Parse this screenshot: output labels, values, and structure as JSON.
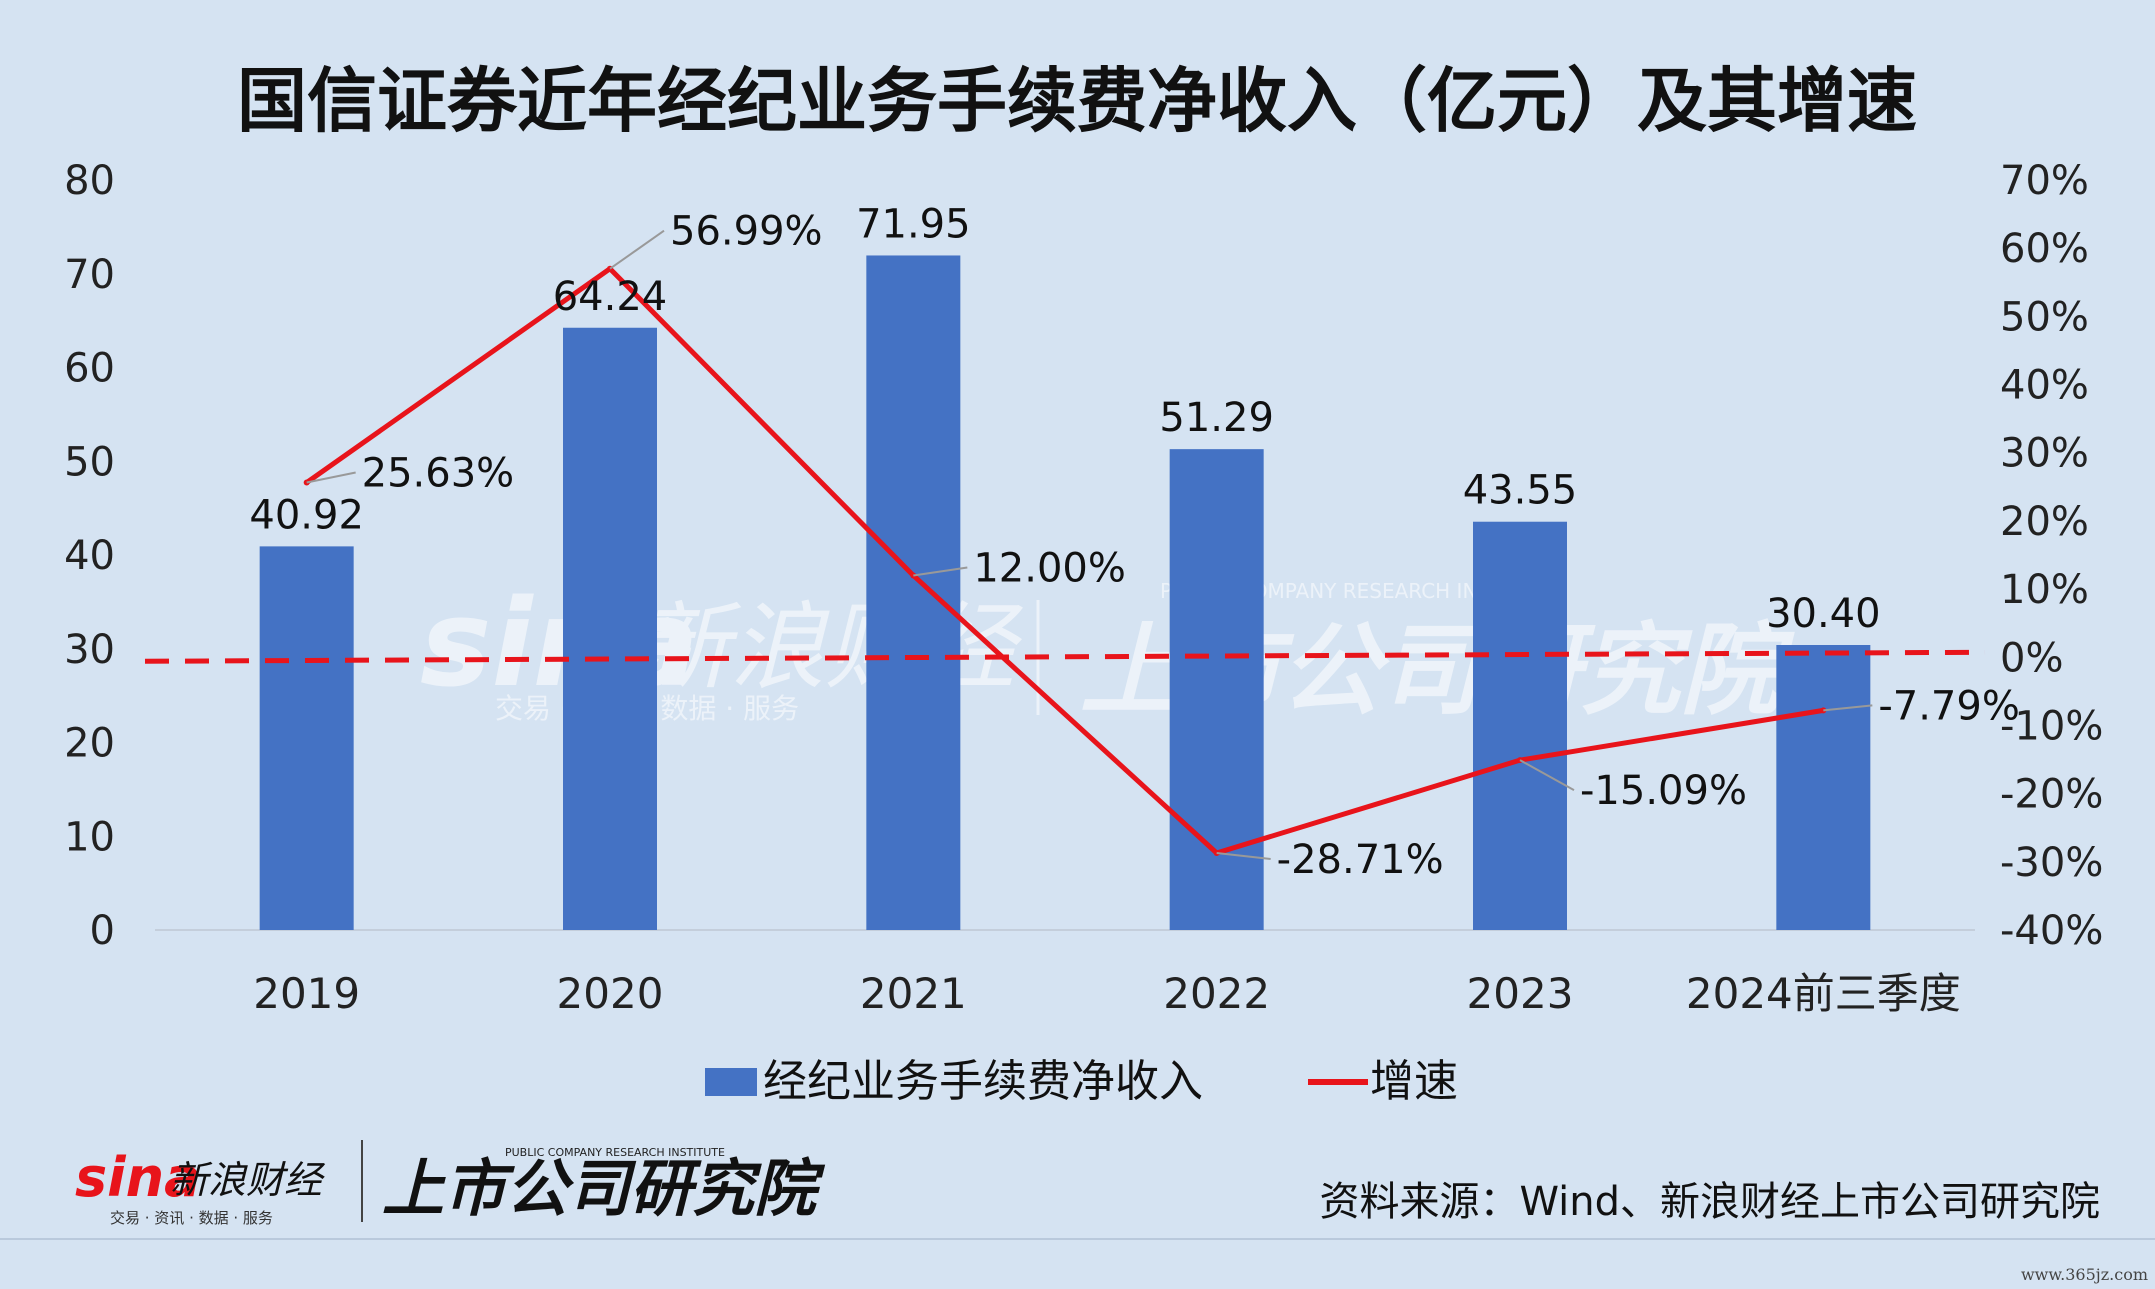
{
  "chart_data": {
    "type": "bar",
    "title": "国信证券近年经纪业务手续费净收入（亿元）及其增速",
    "categories": [
      "2019",
      "2020",
      "2021",
      "2022",
      "2023",
      "2024前三季度"
    ],
    "series": [
      {
        "name": "经纪业务手续费净收入",
        "type": "bar",
        "axis": "left",
        "color": "#4472c4",
        "values": [
          40.92,
          64.24,
          71.95,
          51.29,
          43.55,
          30.4
        ],
        "labels": [
          "40.92",
          "64.24",
          "71.95",
          "51.29",
          "43.55",
          "30.40"
        ]
      },
      {
        "name": "增速",
        "type": "line",
        "axis": "right",
        "color": "#e8141b",
        "values": [
          25.63,
          56.99,
          12.0,
          -28.71,
          -15.09,
          -7.79
        ],
        "labels": [
          "25.63%",
          "56.99%",
          "12.00%",
          "-28.71%",
          "-15.09%",
          "-7.79%"
        ]
      }
    ],
    "y_left": {
      "min": 0,
      "max": 80,
      "step": 10,
      "ticks": [
        "0",
        "10",
        "20",
        "30",
        "40",
        "50",
        "60",
        "70",
        "80"
      ]
    },
    "y_right": {
      "min": -40,
      "max": 70,
      "step": 10,
      "ticks": [
        "-40%",
        "-30%",
        "-20%",
        "-10%",
        "0%",
        "10%",
        "20%",
        "30%",
        "40%",
        "50%",
        "60%",
        "70%"
      ]
    },
    "reference_line": {
      "axis": "right",
      "value": 0,
      "style": "dashed",
      "color": "#e8141b"
    },
    "grid": false,
    "legend_position": "bottom"
  },
  "watermark": {
    "brand": "新浪财经",
    "sina": "sina",
    "tagline": "交易 · 资讯 · 数据 · 服务",
    "institute": "上市公司研究院",
    "institute_en": "PUBLIC COMPANY RESEARCH INSTITUTE"
  },
  "footer": {
    "logo_sina": "sina",
    "logo_brand": "新浪财经",
    "logo_tagline": "交易 · 资讯 · 数据 · 服务",
    "institute_en": "PUBLIC COMPANY RESEARCH INSTITUTE",
    "institute": "上市公司研究院",
    "source": "资料来源：Wind、新浪财经上市公司研究院",
    "site": "www.365jz.com"
  }
}
